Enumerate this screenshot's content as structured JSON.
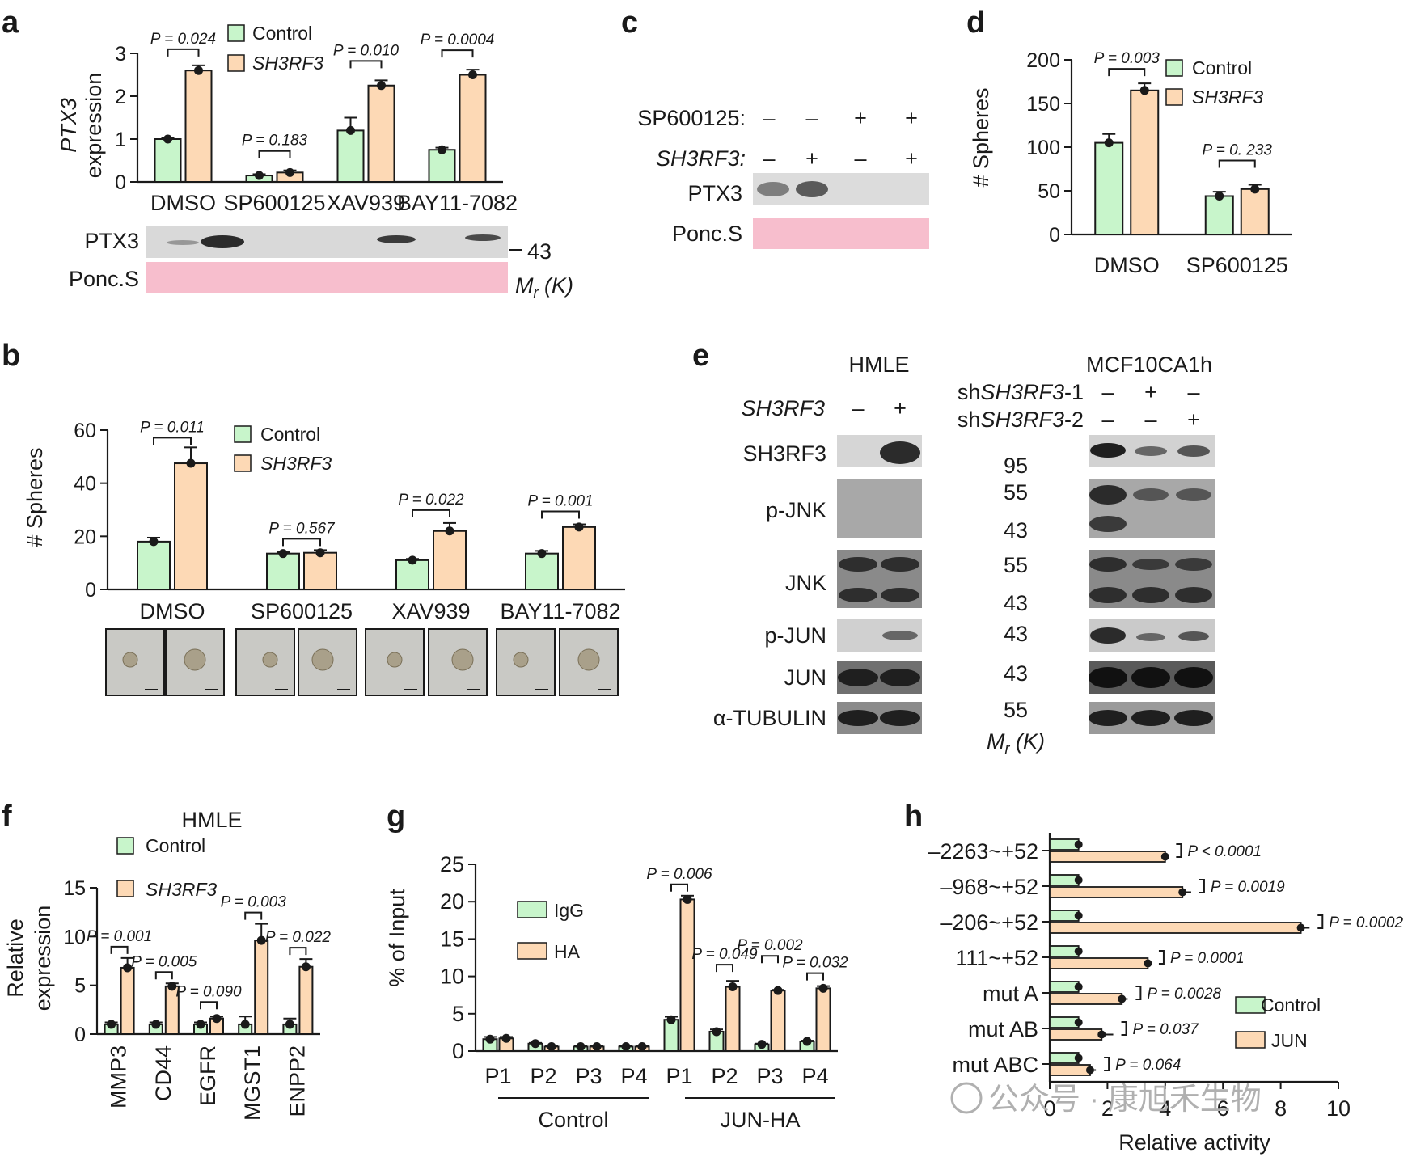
{
  "colors": {
    "control": "#c8f5cb",
    "treated": "#fdd9b5",
    "ponceau": "#f5aec0",
    "blot_bg": "#d9d9d9",
    "band": "#2b2b2b",
    "watermark": "#b0b0b0"
  },
  "panels": {
    "a": {
      "label": "a",
      "ylabel_gene": "PTX3",
      "ylabel_rest": "expression",
      "legend": [
        "Control",
        "SH3RF3"
      ],
      "blot_rows": [
        "PTX3",
        "Ponc.S"
      ],
      "marker": "43",
      "mr_label": "Mr (K)",
      "mr_main": "M",
      "mr_sub": "r",
      "mr_rest": " (K)"
    },
    "b": {
      "label": "b",
      "ylabel": "# Spheres",
      "legend": [
        "Control",
        "SH3RF3"
      ]
    },
    "c": {
      "label": "c",
      "rows": [
        {
          "name": "SP600125:",
          "signs": [
            "–",
            "–",
            "+",
            "+"
          ]
        },
        {
          "name": "SH3RF3:",
          "signs": [
            "–",
            "+",
            "–",
            "+"
          ]
        }
      ],
      "blot_rows": [
        "PTX3",
        "Ponc.S"
      ]
    },
    "d": {
      "label": "d",
      "ylabel": "# Spheres",
      "legend": [
        "Control",
        "SH3RF3"
      ]
    },
    "e": {
      "label": "e",
      "cell_lines": [
        "HMLE",
        "MCF10CA1h"
      ],
      "hmle_row": {
        "name": "SH3RF3",
        "signs": [
          "–",
          "+"
        ]
      },
      "mcf_rows": [
        {
          "prefix": "sh",
          "gene": "SH3RF3",
          "suffix": "-1",
          "signs": [
            "–",
            "+",
            "–"
          ]
        },
        {
          "prefix": "sh",
          "gene": "SH3RF3",
          "suffix": "-2",
          "signs": [
            "–",
            "–",
            "+"
          ]
        }
      ],
      "blots": [
        "SH3RF3",
        "p-JNK",
        "JNK",
        "p-JUN",
        "JUN",
        "α-TUBULIN"
      ],
      "mw_markers": [
        "95",
        "55",
        "43",
        "55",
        "43",
        "43",
        "43",
        "55"
      ],
      "mr_main": "M",
      "mr_sub": "r",
      "mr_rest": " (K)"
    },
    "f": {
      "label": "f",
      "title": "HMLE",
      "ylabel": [
        "Relative",
        "expression"
      ],
      "legend": [
        "Control",
        "SH3RF3"
      ]
    },
    "g": {
      "label": "g",
      "ylabel": "% of Input",
      "legend": [
        "IgG",
        "HA"
      ],
      "group_labels": [
        "Control",
        "JUN-HA"
      ]
    },
    "h": {
      "label": "h",
      "xlabel": "Relative activity",
      "legend": [
        "Control",
        "JUN"
      ]
    }
  },
  "chart_data": [
    {
      "panel": "a",
      "type": "bar",
      "categories": [
        "DMSO",
        "SP600125",
        "XAV939",
        "BAY11-7082"
      ],
      "series": [
        {
          "name": "Control",
          "values": [
            1.0,
            0.15,
            1.2,
            0.75
          ],
          "errors": [
            0.03,
            0.03,
            0.3,
            0.05
          ]
        },
        {
          "name": "SH3RF3",
          "values": [
            2.6,
            0.22,
            2.25,
            2.5
          ],
          "errors": [
            0.12,
            0.05,
            0.12,
            0.12
          ]
        }
      ],
      "pvalues": [
        "P = 0.024",
        "P = 0.183",
        "P = 0.010",
        "P = 0.0004"
      ],
      "ylim": [
        0,
        3
      ],
      "yticks": [
        0,
        1,
        2,
        3
      ]
    },
    {
      "panel": "b",
      "type": "bar",
      "categories": [
        "DMSO",
        "SP600125",
        "XAV939",
        "BAY11-7082"
      ],
      "series": [
        {
          "name": "Control",
          "values": [
            18,
            13.5,
            11,
            13.5
          ],
          "errors": [
            1.5,
            0.5,
            0.5,
            1.0
          ]
        },
        {
          "name": "SH3RF3",
          "values": [
            47.5,
            13.8,
            22,
            23.5
          ],
          "errors": [
            6,
            1.0,
            3,
            1.0
          ]
        }
      ],
      "pvalues": [
        "P = 0.011",
        "P = 0.567",
        "P = 0.022",
        "P = 0.001"
      ],
      "ylim": [
        0,
        60
      ],
      "yticks": [
        0,
        20,
        40,
        60
      ]
    },
    {
      "panel": "d",
      "type": "bar",
      "categories": [
        "DMSO",
        "SP600125"
      ],
      "series": [
        {
          "name": "Control",
          "values": [
            105,
            44
          ],
          "errors": [
            10,
            5
          ]
        },
        {
          "name": "SH3RF3",
          "values": [
            165,
            52
          ],
          "errors": [
            8,
            5
          ]
        }
      ],
      "pvalues": [
        "P = 0.003",
        "P = 0. 233"
      ],
      "ylim": [
        0,
        200
      ],
      "yticks": [
        0,
        50,
        100,
        150,
        200
      ]
    },
    {
      "panel": "f",
      "type": "bar",
      "categories": [
        "MMP3",
        "CD44",
        "EGFR",
        "MGST1",
        "ENPP2"
      ],
      "series": [
        {
          "name": "Control",
          "values": [
            1.0,
            1.0,
            1.0,
            1.0,
            1.0
          ],
          "errors": [
            0.2,
            0.2,
            0.2,
            0.8,
            0.6
          ]
        },
        {
          "name": "SH3RF3",
          "values": [
            6.8,
            4.9,
            1.6,
            9.6,
            6.9
          ],
          "errors": [
            1.0,
            0.3,
            0.2,
            1.7,
            0.8
          ]
        }
      ],
      "pvalues": [
        "P = 0.001",
        "P = 0.005",
        "P = 0.090",
        "P = 0.003",
        "P = 0.022"
      ],
      "ylim": [
        0,
        15
      ],
      "yticks": [
        0,
        5,
        10,
        15
      ]
    },
    {
      "panel": "g",
      "type": "bar",
      "categories": [
        "P1",
        "P2",
        "P3",
        "P4",
        "P1",
        "P2",
        "P3",
        "P4"
      ],
      "groups": [
        "Control",
        "Control",
        "Control",
        "Control",
        "JUN-HA",
        "JUN-HA",
        "JUN-HA",
        "JUN-HA"
      ],
      "series": [
        {
          "name": "IgG",
          "values": [
            1.6,
            1.0,
            0.6,
            0.6,
            4.2,
            2.6,
            0.9,
            1.3
          ],
          "errors": [
            0.3,
            0.1,
            0.1,
            0.1,
            0.4,
            0.3,
            0.1,
            0.1
          ]
        },
        {
          "name": "HA",
          "values": [
            1.7,
            0.6,
            0.6,
            0.6,
            20.3,
            8.6,
            8.1,
            8.4
          ],
          "errors": [
            0.2,
            0.1,
            0.1,
            0.1,
            0.5,
            0.8,
            0.1,
            0.3
          ]
        }
      ],
      "pvalues": [
        null,
        null,
        null,
        null,
        "P = 0.006",
        "P = 0.049",
        "P = 0.002",
        "P = 0.032"
      ],
      "ylim": [
        0,
        25
      ],
      "yticks": [
        0,
        5,
        10,
        15,
        20,
        25
      ]
    },
    {
      "panel": "h",
      "type": "bar",
      "orientation": "horizontal",
      "categories": [
        "–2263~+52",
        "–968~+52",
        "–206~+52",
        "111~+52",
        "mut A",
        "mut AB",
        "mut ABC"
      ],
      "series": [
        {
          "name": "Control",
          "values": [
            1.0,
            1.0,
            1.0,
            1.0,
            1.0,
            1.0,
            1.0
          ],
          "errors": [
            0.05,
            0.05,
            0.05,
            0.05,
            0.05,
            0.05,
            0.05
          ]
        },
        {
          "name": "JUN",
          "values": [
            4.0,
            4.6,
            8.7,
            3.4,
            2.5,
            1.8,
            1.4
          ],
          "errors": [
            0.1,
            0.3,
            0.3,
            0.1,
            0.2,
            0.4,
            0.2
          ]
        }
      ],
      "pvalues": [
        "P < 0.0001",
        "P = 0.0019",
        "P = 0.0002",
        "P = 0.0001",
        "P = 0.0028",
        "P = 0.037",
        "P = 0.064"
      ],
      "xlim": [
        0,
        10
      ],
      "xticks": [
        0,
        2,
        4,
        6,
        8,
        10
      ]
    }
  ],
  "watermark": "公众号 · 康旭禾生物"
}
